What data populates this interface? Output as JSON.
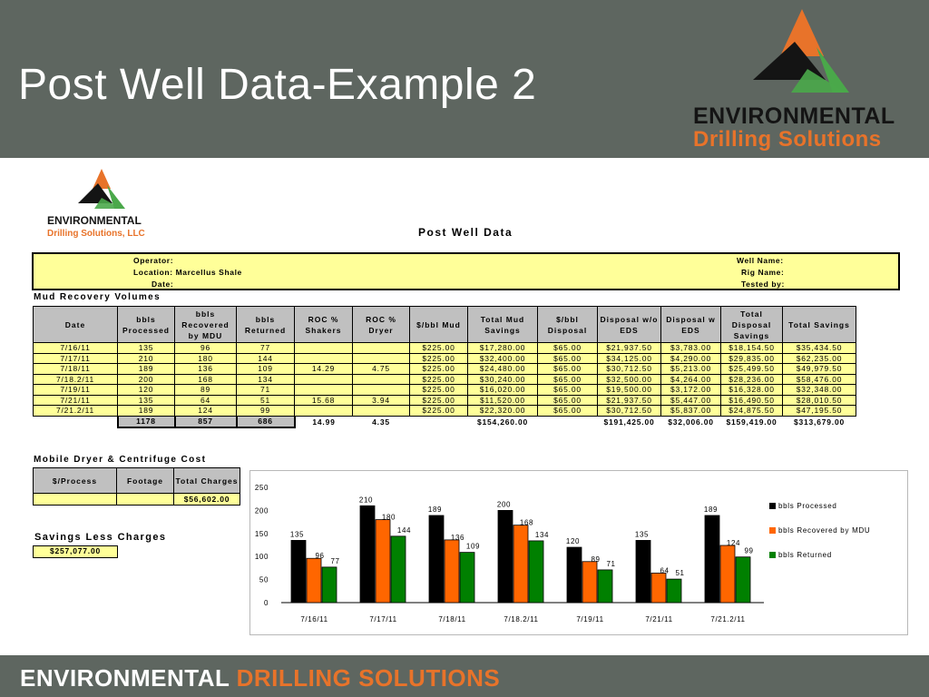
{
  "slide": {
    "title": "Post Well Data-Example 2",
    "brand_line1": "ENVIRONMENTAL",
    "brand_line2": "Drilling Solutions",
    "footer_part1": "ENVIRONMENTAL ",
    "footer_part2": "DRILLING SOLUTIONS"
  },
  "document": {
    "logo_line1": "ENVIRONMENTAL",
    "logo_line2": "Drilling Solutions, LLC",
    "title": "Post Well Data",
    "operator_label": "Operator:",
    "location_label": "Location: Marcellus Shale",
    "date_label": "Date:",
    "well_name_label": "Well Name:",
    "rig_name_label": "Rig Name:",
    "tested_by_label": "Tested by:"
  },
  "mud_recovery": {
    "section_title": "Mud Recovery Volumes",
    "headers": [
      "Date",
      "bbls Processed",
      "bbls Recovered by MDU",
      "bbls Returned",
      "ROC % Shakers",
      "ROC % Dryer",
      "$/bbl Mud",
      "Total Mud Savings",
      "$/bbl Disposal",
      "Disposal w/o EDS",
      "Disposal w EDS",
      "Total Disposal Savings",
      "Total Savings"
    ],
    "rows": [
      [
        "7/16/11",
        "135",
        "96",
        "77",
        "",
        "",
        "$225.00",
        "$17,280.00",
        "$65.00",
        "$21,937.50",
        "$3,783.00",
        "$18,154.50",
        "$35,434.50"
      ],
      [
        "7/17/11",
        "210",
        "180",
        "144",
        "",
        "",
        "$225.00",
        "$32,400.00",
        "$65.00",
        "$34,125.00",
        "$4,290.00",
        "$29,835.00",
        "$62,235.00"
      ],
      [
        "7/18/11",
        "189",
        "136",
        "109",
        "14.29",
        "4.75",
        "$225.00",
        "$24,480.00",
        "$65.00",
        "$30,712.50",
        "$5,213.00",
        "$25,499.50",
        "$49,979.50"
      ],
      [
        "7/18.2/11",
        "200",
        "168",
        "134",
        "",
        "",
        "$225.00",
        "$30,240.00",
        "$65.00",
        "$32,500.00",
        "$4,264.00",
        "$28,236.00",
        "$58,476.00"
      ],
      [
        "7/19/11",
        "120",
        "89",
        "71",
        "",
        "",
        "$225.00",
        "$16,020.00",
        "$65.00",
        "$19,500.00",
        "$3,172.00",
        "$16,328.00",
        "$32,348.00"
      ],
      [
        "7/21/11",
        "135",
        "64",
        "51",
        "15.68",
        "3.94",
        "$225.00",
        "$11,520.00",
        "$65.00",
        "$21,937.50",
        "$5,447.00",
        "$16,490.50",
        "$28,010.50"
      ],
      [
        "7/21.2/11",
        "189",
        "124",
        "99",
        "",
        "",
        "$225.00",
        "$22,320.00",
        "$65.00",
        "$30,712.50",
        "$5,837.00",
        "$24,875.50",
        "$47,195.50"
      ]
    ],
    "totals": [
      "",
      "1178",
      "857",
      "686",
      "14.99",
      "4.35",
      "",
      "$154,260.00",
      "",
      "$191,425.00",
      "$32,006.00",
      "$159,419.00",
      "$313,679.00"
    ]
  },
  "mobile_dryer": {
    "section_title": "Mobile Dryer & Centrifuge Cost",
    "headers": [
      "$/Process",
      "Footage",
      "Total Charges"
    ],
    "row": [
      "",
      "",
      "$56,602.00"
    ]
  },
  "savings_less_charges": {
    "title": "Savings Less Charges",
    "value": "$257,077.00"
  },
  "chart_data": {
    "type": "bar",
    "categories": [
      "7/16/11",
      "7/17/11",
      "7/18/11",
      "7/18.2/11",
      "7/19/11",
      "7/21/11",
      "7/21.2/11"
    ],
    "series": [
      {
        "name": "bbls Processed",
        "values": [
          135,
          210,
          189,
          200,
          120,
          135,
          189
        ],
        "color": "#000000"
      },
      {
        "name": "bbls Recovered by MDU",
        "values": [
          96,
          180,
          136,
          168,
          89,
          64,
          124
        ],
        "color": "#ff6600"
      },
      {
        "name": "bbls Returned",
        "values": [
          77,
          144,
          109,
          134,
          71,
          51,
          99
        ],
        "color": "#008000"
      }
    ],
    "yticks": [
      "250",
      "200",
      "150",
      "100",
      "50",
      "0"
    ],
    "ylim": [
      0,
      250
    ],
    "legend": "right",
    "grid": false
  }
}
